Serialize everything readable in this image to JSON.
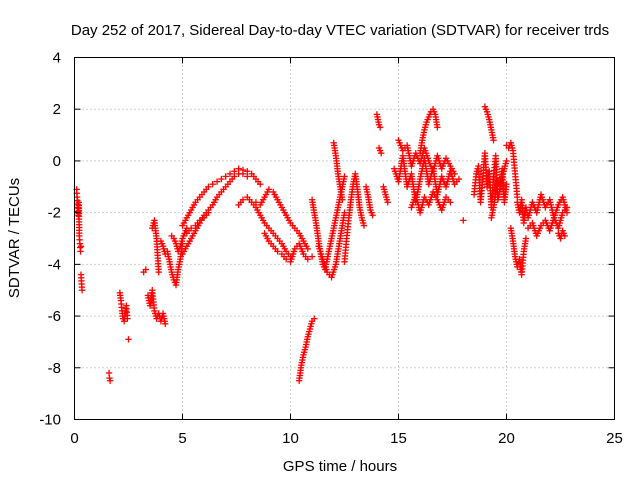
{
  "chart_data": {
    "type": "scatter",
    "title": "Day 252 of 2017, Sidereal Day-to-day VTEC variation (SDTVAR) for receiver trds",
    "xlabel": "GPS time / hours",
    "ylabel": "SDTVAR / TECUs",
    "xlim": [
      0,
      25
    ],
    "ylim": [
      -10,
      4
    ],
    "xticks": [
      0,
      5,
      10,
      15,
      20,
      25
    ],
    "yticks": [
      -10,
      -8,
      -6,
      -4,
      -2,
      0,
      2,
      4
    ],
    "xtick_labels": [
      "0",
      "5",
      "10",
      "15",
      "20",
      "25"
    ],
    "ytick_labels": [
      "-10",
      "-8",
      "-6",
      "-4",
      "-2",
      "0",
      "2",
      "4"
    ],
    "grid": true,
    "marker": "+",
    "color": "#ff0000",
    "series": [
      {
        "name": "SDTVAR",
        "segments": [
          {
            "x": [
              0.1,
              0.12,
              0.15,
              0.18,
              0.2,
              0.22,
              0.25,
              0.28,
              0.3
            ],
            "y": [
              -1.1,
              -1.4,
              -1.8,
              -2.1,
              -1.6,
              -2.9,
              -3.2,
              -3.5,
              -3.3
            ]
          },
          {
            "x": [
              0.3,
              0.35
            ],
            "y": [
              -4.4,
              -5.0
            ]
          },
          {
            "x": [
              1.6,
              1.62,
              1.65
            ],
            "y": [
              -8.2,
              -8.4,
              -8.5
            ]
          },
          {
            "x": [
              2.1,
              2.15,
              2.2,
              2.25,
              2.3,
              2.35,
              2.4,
              2.45
            ],
            "y": [
              -5.1,
              -5.4,
              -5.8,
              -6.1,
              -6.2,
              -5.9,
              -5.6,
              -6.1
            ]
          },
          {
            "x": [
              2.5
            ],
            "y": [
              -6.9
            ]
          },
          {
            "x": [
              3.2,
              3.3
            ],
            "y": [
              -4.3,
              -4.2
            ]
          },
          {
            "x": [
              3.4,
              3.5,
              3.6,
              3.7,
              3.8,
              3.9,
              4.0,
              4.1,
              4.2
            ],
            "y": [
              -5.2,
              -5.6,
              -5.0,
              -5.8,
              -6.1,
              -5.9,
              -6.2,
              -5.9,
              -6.3
            ]
          },
          {
            "x": [
              3.6,
              3.7,
              3.8,
              3.9
            ],
            "y": [
              -2.6,
              -2.3,
              -3.0,
              -4.3
            ]
          },
          {
            "x": [
              4.0,
              4.1,
              4.2,
              4.3,
              4.4,
              4.5,
              4.6,
              4.7,
              4.8,
              4.9,
              5.0
            ],
            "y": [
              -3.1,
              -3.3,
              -3.6,
              -3.5,
              -3.9,
              -4.3,
              -4.6,
              -4.8,
              -4.2,
              -3.8,
              -3.2
            ]
          },
          {
            "x": [
              4.5,
              4.6,
              4.7,
              4.8,
              4.9,
              5.0,
              5.1,
              5.2
            ],
            "y": [
              -2.9,
              -3.0,
              -3.2,
              -3.5,
              -3.3,
              -3.0,
              -2.8,
              -2.6
            ]
          },
          {
            "x": [
              5.0,
              5.2,
              5.4,
              5.6,
              5.8,
              6.0,
              6.2,
              6.4,
              6.6,
              6.8,
              7.0,
              7.2,
              7.4,
              7.6,
              7.8,
              8.0,
              8.2,
              8.4,
              8.6
            ],
            "y": [
              -2.5,
              -2.2,
              -1.9,
              -1.6,
              -1.4,
              -1.2,
              -1.0,
              -0.9,
              -0.8,
              -0.7,
              -0.6,
              -0.5,
              -0.4,
              -0.3,
              -0.35,
              -0.4,
              -0.5,
              -0.7,
              -0.9
            ]
          },
          {
            "x": [
              5.0,
              5.2,
              5.4,
              5.6,
              5.8,
              6.0,
              6.2,
              6.4,
              6.6,
              6.8,
              7.0,
              7.2,
              7.4,
              7.6,
              7.8,
              8.0
            ],
            "y": [
              -3.6,
              -3.3,
              -3.0,
              -2.7,
              -2.4,
              -2.1,
              -1.9,
              -1.7,
              -1.4,
              -1.2,
              -1.0,
              -0.8,
              -0.6,
              -0.5,
              -0.5,
              -0.6
            ]
          },
          {
            "x": [
              5.2,
              5.4,
              5.6,
              5.8,
              6.0,
              6.2
            ],
            "y": [
              -2.8,
              -2.6,
              -2.5,
              -2.3,
              -2.2,
              -2.0
            ]
          },
          {
            "x": [
              7.6,
              7.8,
              8.0,
              8.2,
              8.4,
              8.6,
              8.8,
              9.0,
              9.2,
              9.4,
              9.6,
              9.8,
              10.0
            ],
            "y": [
              -1.7,
              -1.5,
              -1.4,
              -1.6,
              -1.8,
              -2.1,
              -2.4,
              -2.6,
              -2.8,
              -3.0,
              -3.2,
              -3.5,
              -3.7
            ]
          },
          {
            "x": [
              8.4,
              8.6,
              8.8,
              9.0,
              9.2,
              9.4,
              9.6,
              9.8,
              10.0,
              10.2,
              10.4,
              10.6,
              10.8
            ],
            "y": [
              -1.6,
              -1.7,
              -1.4,
              -1.1,
              -1.2,
              -1.5,
              -1.8,
              -2.1,
              -2.4,
              -2.6,
              -2.8,
              -3.1,
              -3.4
            ]
          },
          {
            "x": [
              8.8,
              9.0,
              9.2,
              9.4,
              9.6,
              9.8,
              10.0,
              10.2,
              10.4,
              10.6,
              10.8,
              11.0
            ],
            "y": [
              -2.8,
              -3.1,
              -3.3,
              -3.5,
              -3.6,
              -3.8,
              -3.9,
              -3.4,
              -3.2,
              -3.6,
              -3.8,
              -3.7
            ]
          },
          {
            "x": [
              10.4,
              10.45,
              10.5,
              10.6,
              10.7,
              10.8,
              10.9,
              11.0,
              11.1
            ],
            "y": [
              -8.5,
              -8.2,
              -7.9,
              -7.5,
              -7.2,
              -6.8,
              -6.5,
              -6.2,
              -6.1
            ]
          },
          {
            "x": [
              11.0,
              11.1,
              11.2,
              11.3,
              11.4,
              11.5,
              11.6,
              11.7,
              11.8,
              11.9,
              12.0,
              12.1,
              12.2,
              12.3,
              12.4,
              12.5
            ],
            "y": [
              -1.5,
              -2.0,
              -2.5,
              -3.1,
              -3.6,
              -4.0,
              -4.2,
              -3.8,
              -3.4,
              -3.0,
              -2.6,
              -2.2,
              -1.8,
              -1.4,
              -1.0,
              -0.6
            ]
          },
          {
            "x": [
              11.3,
              11.5,
              11.7,
              11.9,
              12.1,
              12.3,
              12.5
            ],
            "y": [
              -3.3,
              -3.8,
              -4.3,
              -4.5,
              -4.0,
              -3.0,
              -2.0
            ]
          },
          {
            "x": [
              12.0,
              12.1,
              12.2,
              12.3,
              12.4
            ],
            "y": [
              0.7,
              0.2,
              -0.5,
              -1.0,
              -1.5
            ]
          },
          {
            "x": [
              12.5,
              12.6,
              12.7,
              12.8,
              12.9,
              13.0,
              13.1,
              13.2,
              13.3,
              13.4
            ],
            "y": [
              -3.9,
              -3.0,
              -2.2,
              -1.5,
              -0.9,
              -0.5,
              -1.1,
              -1.8,
              -2.2,
              -2.5
            ]
          },
          {
            "x": [
              13.5,
              13.6,
              13.7,
              13.8
            ],
            "y": [
              -1.0,
              -1.4,
              -1.9,
              -2.1
            ]
          },
          {
            "x": [
              14.0,
              14.05,
              14.1,
              14.15
            ],
            "y": [
              1.8,
              1.6,
              1.4,
              1.3
            ]
          },
          {
            "x": [
              14.1,
              14.2
            ],
            "y": [
              0.5,
              0.3
            ]
          },
          {
            "x": [
              14.3,
              14.4,
              14.5
            ],
            "y": [
              -1.0,
              -1.3,
              -1.6
            ]
          },
          {
            "x": [
              14.8,
              15.0,
              15.2,
              15.4,
              15.6,
              15.8,
              16.0,
              16.2,
              16.4,
              16.6,
              16.8,
              17.0,
              17.2,
              17.4,
              17.6,
              17.8
            ],
            "y": [
              -0.3,
              -0.8,
              0.2,
              -1.0,
              -0.5,
              -1.6,
              -0.7,
              0.1,
              -0.9,
              -0.3,
              -1.3,
              -0.6,
              -1.0,
              -0.4,
              -0.9,
              -0.7
            ]
          },
          {
            "x": [
              15.0,
              15.2,
              15.4,
              15.6,
              15.8,
              16.0,
              16.2,
              16.4,
              16.6,
              16.8,
              17.0,
              17.2,
              17.4,
              17.6
            ],
            "y": [
              0.8,
              0.4,
              0.6,
              -0.2,
              0.3,
              -0.1,
              0.5,
              0.0,
              -0.4,
              0.2,
              -0.3,
              0.1,
              -0.2,
              -0.5
            ]
          },
          {
            "x": [
              15.6,
              15.8,
              16.0,
              16.2,
              16.4,
              16.6,
              16.8,
              17.0,
              17.2,
              17.4
            ],
            "y": [
              -1.8,
              -1.3,
              -2.0,
              -1.4,
              -1.7,
              -1.2,
              -1.5,
              -1.9,
              -1.4,
              -1.6
            ]
          },
          {
            "x": [
              16.0,
              16.1,
              16.2,
              16.3,
              16.4,
              16.5,
              16.6,
              16.7,
              16.8
            ],
            "y": [
              0.3,
              0.8,
              1.2,
              1.5,
              1.7,
              1.9,
              2.0,
              1.8,
              1.3
            ]
          },
          {
            "x": [
              18.0
            ],
            "y": [
              -2.3
            ]
          },
          {
            "x": [
              18.5,
              18.6,
              18.7,
              18.8,
              18.9,
              19.0,
              19.1,
              19.2,
              19.3,
              19.4,
              19.5,
              19.6,
              19.7,
              19.8,
              19.9,
              20.0
            ],
            "y": [
              -1.3,
              -0.5,
              -0.2,
              -1.6,
              -0.7,
              0.3,
              -1.0,
              -0.4,
              -1.8,
              -0.6,
              0.2,
              -1.5,
              -1.1,
              -0.3,
              -1.6,
              -0.9
            ]
          },
          {
            "x": [
              19.0,
              19.1,
              19.2,
              19.3,
              19.4
            ],
            "y": [
              2.1,
              1.9,
              1.6,
              1.2,
              0.8
            ]
          },
          {
            "x": [
              19.3,
              19.4,
              19.5,
              19.6,
              19.7,
              19.8,
              19.9,
              20.0
            ],
            "y": [
              -2.2,
              -1.8,
              -1.3,
              -0.8,
              -1.0,
              -0.6,
              -0.3,
              0.0
            ]
          },
          {
            "x": [
              20.0,
              20.1,
              20.2,
              20.3,
              20.4,
              20.5
            ],
            "y": [
              0.6,
              0.5,
              0.7,
              0.4,
              -0.5,
              -1.4
            ]
          },
          {
            "x": [
              20.2,
              20.3,
              20.4,
              20.5,
              20.6,
              20.7,
              20.8,
              20.9
            ],
            "y": [
              -2.6,
              -3.1,
              -3.7,
              -4.1,
              -3.8,
              -4.4,
              -3.5,
              -3.0
            ]
          },
          {
            "x": [
              20.5,
              20.6,
              20.7,
              20.8,
              20.9,
              21.0,
              21.2,
              21.4,
              21.6,
              21.8,
              22.0,
              22.2,
              22.4,
              22.6,
              22.8
            ],
            "y": [
              -1.6,
              -2.0,
              -1.5,
              -2.4,
              -1.8,
              -2.2,
              -1.6,
              -2.0,
              -1.3,
              -1.8,
              -1.5,
              -2.2,
              -1.7,
              -1.4,
              -2.0
            ]
          },
          {
            "x": [
              21.0,
              21.2,
              21.4,
              21.6,
              21.8,
              22.0,
              22.2,
              22.4,
              22.6,
              22.8
            ],
            "y": [
              -2.6,
              -2.4,
              -2.9,
              -2.5,
              -2.3,
              -2.7,
              -2.2,
              -2.6,
              -2.0,
              -1.8
            ]
          },
          {
            "x": [
              22.4,
              22.5,
              22.6,
              22.7
            ],
            "y": [
              -2.8,
              -3.0,
              -2.7,
              -2.9
            ]
          }
        ]
      }
    ]
  }
}
